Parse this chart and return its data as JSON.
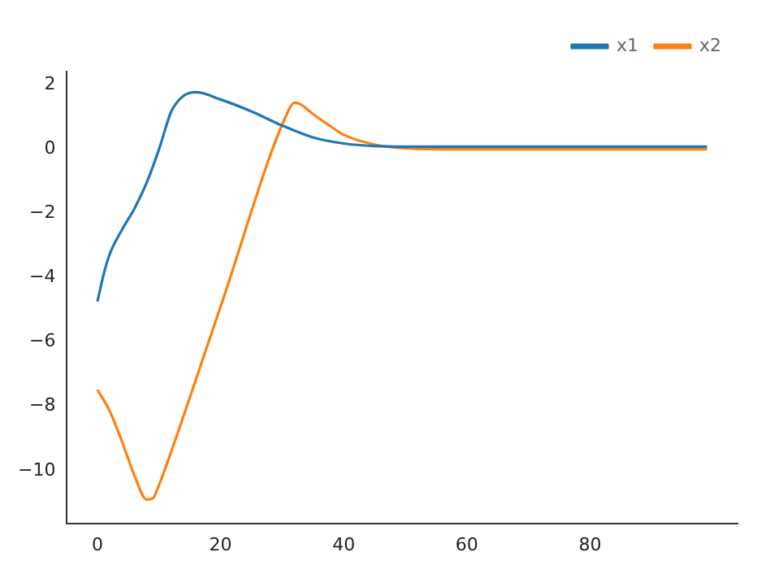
{
  "chart_data": {
    "type": "line",
    "xlim": [
      -4.95,
      103.95
    ],
    "ylim": [
      -11.64,
      2.42
    ],
    "xticks": [
      0,
      20,
      40,
      60,
      80
    ],
    "yticks": [
      -10,
      -8,
      -6,
      -4,
      -2,
      0,
      2
    ],
    "grid": false,
    "legend": "top right",
    "marker": "none",
    "line_style": "solid",
    "series": [
      {
        "name": "x1",
        "color": "#1f77b4",
        "x": [
          0,
          1,
          2,
          4,
          6,
          8,
          10,
          12,
          14,
          16,
          20,
          25,
          30,
          35,
          40,
          45,
          50,
          60,
          99
        ],
        "values": [
          -4.74,
          -3.9,
          -3.26,
          -2.5,
          -1.85,
          -1.04,
          0,
          1.18,
          1.67,
          1.78,
          1.55,
          1.18,
          0.74,
          0.37,
          0.18,
          0.1,
          0.08,
          0.08,
          0.08
        ]
      },
      {
        "name": "x2",
        "color": "#ff7f0e",
        "x": [
          0,
          2,
          4,
          6,
          8,
          9,
          10,
          12,
          20,
          31,
          32,
          33,
          35,
          38,
          40,
          45,
          50,
          60,
          99
        ],
        "values": [
          -7.48,
          -8.15,
          -9.1,
          -10.15,
          -10.9,
          -10.86,
          -10.45,
          -9.4,
          -4.9,
          1.2,
          1.45,
          1.4,
          1.1,
          0.7,
          0.45,
          0.15,
          0.03,
          0,
          0
        ]
      }
    ]
  }
}
